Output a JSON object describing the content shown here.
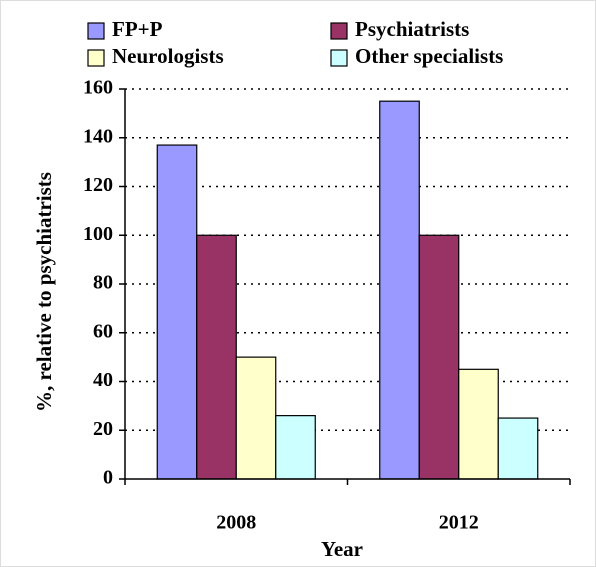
{
  "chart_data": {
    "type": "bar",
    "categories": [
      "2008",
      "2012"
    ],
    "series": [
      {
        "name": "FP+P",
        "color": "#9999ff",
        "values": [
          137,
          155
        ]
      },
      {
        "name": "Psychiatrists",
        "color": "#993366",
        "values": [
          100,
          100
        ]
      },
      {
        "name": "Neurologists",
        "color": "#ffffcc",
        "values": [
          50,
          45
        ]
      },
      {
        "name": "Other specialists",
        "color": "#ccffff",
        "values": [
          26,
          25
        ]
      }
    ],
    "x_label": "Year",
    "y_label": "%, relative to psychiatrists",
    "ylim": [
      0,
      160
    ],
    "yticks": [
      0,
      20,
      40,
      60,
      80,
      100,
      120,
      140,
      160
    ],
    "grid": true,
    "legend": "top"
  }
}
